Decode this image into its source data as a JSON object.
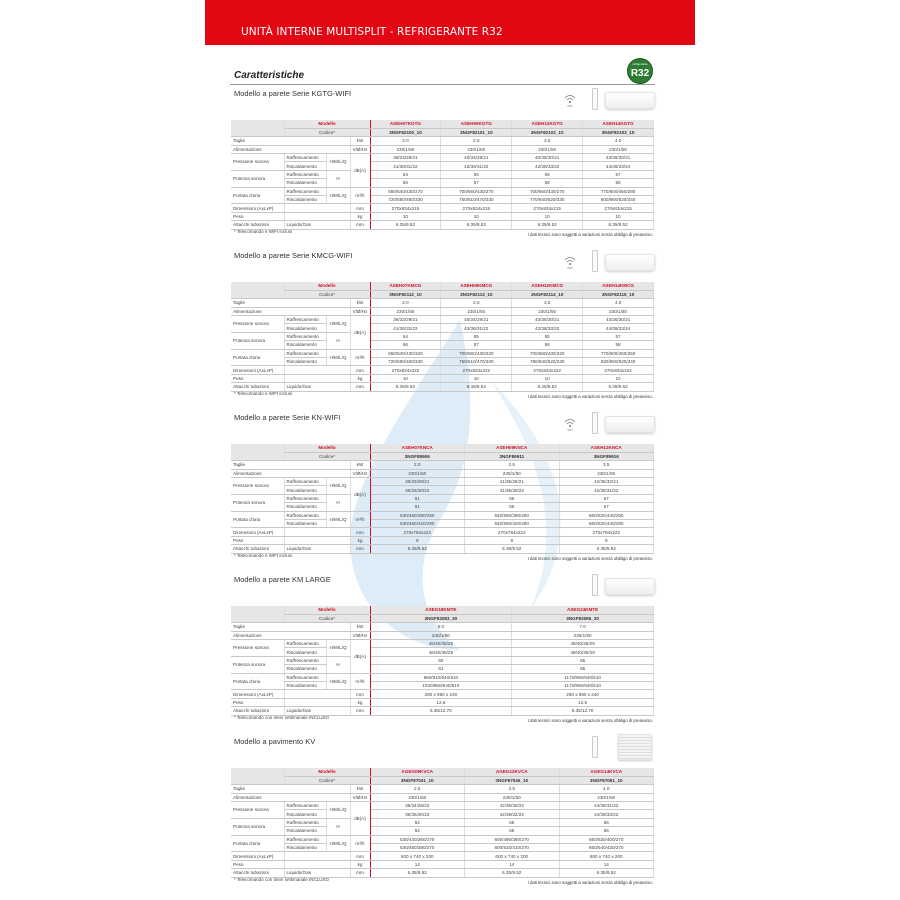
{
  "banner_title": "UNITÀ INTERNE MULTISPLIT - REFRIGERANTE R32",
  "heading": "Caratteristiche",
  "badge": {
    "top": "refrigerante",
    "main": "R32",
    "color": "#2e7d32"
  },
  "colors": {
    "brand_red": "#e30613",
    "model_red": "#d0102a"
  },
  "labels": {
    "modello": "Modello",
    "codice": "Codice*",
    "taglie": "Taglie",
    "alimentazione": "Alimentazione",
    "pressione": "Pressione sonora",
    "potenza": "Potenza sonora",
    "portata": "Portata d'aria",
    "dimensioni": "Dimensioni (AxLxP)",
    "peso": "Peso",
    "attacchi": "Attacchi tubazioni",
    "raff": "Raffrescamento",
    "risc": "Riscaldamento",
    "hmlq": "H/M/L/Q",
    "h": "H",
    "liquido": "Liquido/Gas",
    "u_kw": "kW",
    "u_alim": "V/Ø/Hz",
    "u_db": "dB(A)",
    "u_m3": "m³/h",
    "u_mm": "mm",
    "u_kg": "kg"
  },
  "disclaimer": "I dati tecnici sono soggetti a variazioni senza obbligo di preavviso.",
  "sections": [
    {
      "title": "Modello a parete Serie KGTG-WIFI",
      "icons": [
        "wifi-icon",
        "remote-icon",
        "wall-unit-icon"
      ],
      "footnote": "* Telecomando e WIFI inclusi",
      "models": [
        "ASEH07KGTG",
        "ASEH09KGTG",
        "ASEH12KGTG",
        "ASEH14KGTG"
      ],
      "codes": [
        "3NGF82100_10",
        "3NGF82101_10",
        "3NGF82102_10",
        "3NGF82103_10"
      ],
      "taglie": [
        "2.0",
        "2.5",
        "3.5",
        "4.0"
      ],
      "alim": [
        "230/1/50",
        "230/1/50",
        "230/1/50",
        "230/1/50"
      ],
      "ps_raff": [
        "38/33/29/21",
        "40/34/29/21",
        "40/35/30/21",
        "43/36/30/21"
      ],
      "ps_risc": [
        "41/36/31/22",
        "42/36/31/22",
        "42/38/33/22",
        "44/39/33/24"
      ],
      "pw_raff": [
        "54",
        "55",
        "56",
        "57"
      ],
      "pw_risc": [
        "56",
        "57",
        "58",
        "59"
      ],
      "pa_raff": [
        "650/540/430/270",
        "700/560/430/270",
        "700/560/430/270",
        "770/600/450/280"
      ],
      "pa_risc": [
        "720/580/460/330",
        "750/610/470/330",
        "770/640/520/330",
        "800/660/520/340"
      ],
      "dim": [
        "270x834x215",
        "270x834x215",
        "270x834x215",
        "270x834x215"
      ],
      "peso": [
        "10",
        "10",
        "10",
        "10"
      ],
      "attacchi": [
        "6.35/9.52",
        "6.35/9.52",
        "6.35/9.52",
        "6.35/9.52"
      ]
    },
    {
      "title": "Modello a parete Serie KMCG-WIFI",
      "icons": [
        "wifi-icon",
        "remote-icon",
        "wall-unit-icon"
      ],
      "footnote": "* Telecomando e WIFI inclusi",
      "models": [
        "ASEH07KMCG",
        "ASEH09KMCG",
        "ASEH12KMCG",
        "ASEH14KMCG"
      ],
      "codes": [
        "3NGF82112_10",
        "3NGF82113_10",
        "3NGF82114_10",
        "3NGF82115_10"
      ],
      "taglie": [
        "2.0",
        "2.5",
        "3.5",
        "4.0"
      ],
      "alim": [
        "230/1/50",
        "230/1/50",
        "230/1/50",
        "230/1/50"
      ],
      "ps_raff": [
        "38/33/29/21",
        "40/34/29/21",
        "40/35/30/21",
        "43/36/30/21"
      ],
      "ps_risc": [
        "41/36/31/22",
        "42/36/31/22",
        "42/38/33/22",
        "44/39/33/24"
      ],
      "pw_raff": [
        "54",
        "55",
        "55",
        "57"
      ],
      "pw_risc": [
        "56",
        "57",
        "58",
        "58"
      ],
      "pa_raff": [
        "650/540/430/320",
        "700/560/430/320",
        "700/560/430/320",
        "770/600/450/350"
      ],
      "pa_risc": [
        "720/580/460/330",
        "750/610/470/330",
        "780/640/520/330",
        "820/660/520/340"
      ],
      "dim": [
        "270x834x222",
        "270x834x222",
        "270x834x222",
        "270x834x222"
      ],
      "peso": [
        "10",
        "10",
        "10",
        "10"
      ],
      "attacchi": [
        "6.35/9.52",
        "6.35/9.52",
        "6.35/9.52",
        "6.35/9.52"
      ]
    },
    {
      "title": "Modello a parete Serie KN-WIFI",
      "icons": [
        "wifi-icon",
        "remote-icon",
        "wall-unit-icon"
      ],
      "footnote": "* Telecomando e WIFI inclusi",
      "models": [
        "ASEH07KNCA",
        "ASEH09KNCA",
        "ASEH12KNCA"
      ],
      "codes": [
        "3NGF89906",
        "3NGF89911",
        "3NGF89916"
      ],
      "taglie": [
        "2.0",
        "2.5",
        "3.5"
      ],
      "alim": [
        "230/1/50",
        "230/1/50",
        "230/1/50"
      ],
      "ps_raff": [
        "36/33/28/21",
        "41/35/28/21",
        "42/36/32/21"
      ],
      "ps_risc": [
        "36/33/30/22",
        "41/36/30/22",
        "42/35/31/22"
      ],
      "pw_raff": [
        "51",
        "56",
        "57"
      ],
      "pw_risc": [
        "51",
        "56",
        "57"
      ],
      "pa_raff": [
        "530/460/390/250",
        "640/560/390/250",
        "660/520/440/250"
      ],
      "pa_risc": [
        "530/460/420/280",
        "640/560/420/280",
        "660/520/440/280"
      ],
      "dim": [
        "270x784x222",
        "270x784x222",
        "270x784x222"
      ],
      "peso": [
        "9",
        "9",
        "9"
      ],
      "attacchi": [
        "6.35/9.52",
        "6.35/9.52",
        "6.35/9.52"
      ]
    },
    {
      "title": "Modello a parete KM LARGE",
      "icons": [
        "remote-icon",
        "wall-unit-icon"
      ],
      "footnote": "* Telecomando con timer settimanale INCLUSO",
      "models": [
        "ASEG18KMTE",
        "ASEG24KMTE"
      ],
      "codes": [
        "3NGF82083_20",
        "3NGF82086_20"
      ],
      "taglie": [
        "5.0",
        "7.0"
      ],
      "alim": [
        "230/1/50",
        "230/1/50"
      ],
      "ps_raff": [
        "45/40/35/29",
        "49/40/35/29"
      ],
      "ps_risc": [
        "46/40/35/29",
        "49/40/35/29"
      ],
      "pw_raff": [
        "60",
        "65"
      ],
      "pw_risc": [
        "61",
        "65"
      ],
      "pa_raff": [
        "960/810/640/510",
        "1170/850/640/510"
      ],
      "pa_risc": [
        "1020/850/640/510",
        "1170/850/640/510"
      ],
      "dim": [
        "280 x 980 x 240",
        "280 x 980 x 240"
      ],
      "peso": [
        "12.5",
        "12.5"
      ],
      "attacchi": [
        "6.35/12.70",
        "6.35/12.70"
      ]
    },
    {
      "title": "Modello a pavimento KV",
      "icons": [
        "remote-icon",
        "floor-unit-icon"
      ],
      "footnote": "* Telecomando con timer settimanale INCLUSO",
      "models": [
        "AGEG09KVCA",
        "AGEG12KVCA",
        "AGEG14KVCA"
      ],
      "codes": [
        "3NGF87041_10",
        "3NGF87046_10",
        "3NGF87051_10"
      ],
      "taglie": [
        "2.5",
        "3.5",
        "4.0"
      ],
      "alim": [
        "230/1/50",
        "230/1/50",
        "230/1/50"
      ],
      "ps_raff": [
        "39/34/28/22",
        "42/36/30/22",
        "44/38/31/22"
      ],
      "ps_risc": [
        "39/35/30/22",
        "42/38/32/22",
        "44/39/33/22"
      ],
      "pw_raff": [
        "52",
        "55",
        "56"
      ],
      "pw_risc": [
        "52",
        "55",
        "56"
      ],
      "pa_raff": [
        "530/440/360/270",
        "600/490/380/270",
        "650/520/400/270"
      ],
      "pa_risc": [
        "530/460/380/270",
        "600/510/410/270",
        "650/540/430/270"
      ],
      "dim": [
        "600 x 740 x 200",
        "600 x 740 x 200",
        "600 x 740 x 200"
      ],
      "peso": [
        "14",
        "14",
        "14"
      ],
      "attacchi": [
        "6.35/9.52",
        "6.35/9.52",
        "6.35/9.52"
      ]
    }
  ]
}
